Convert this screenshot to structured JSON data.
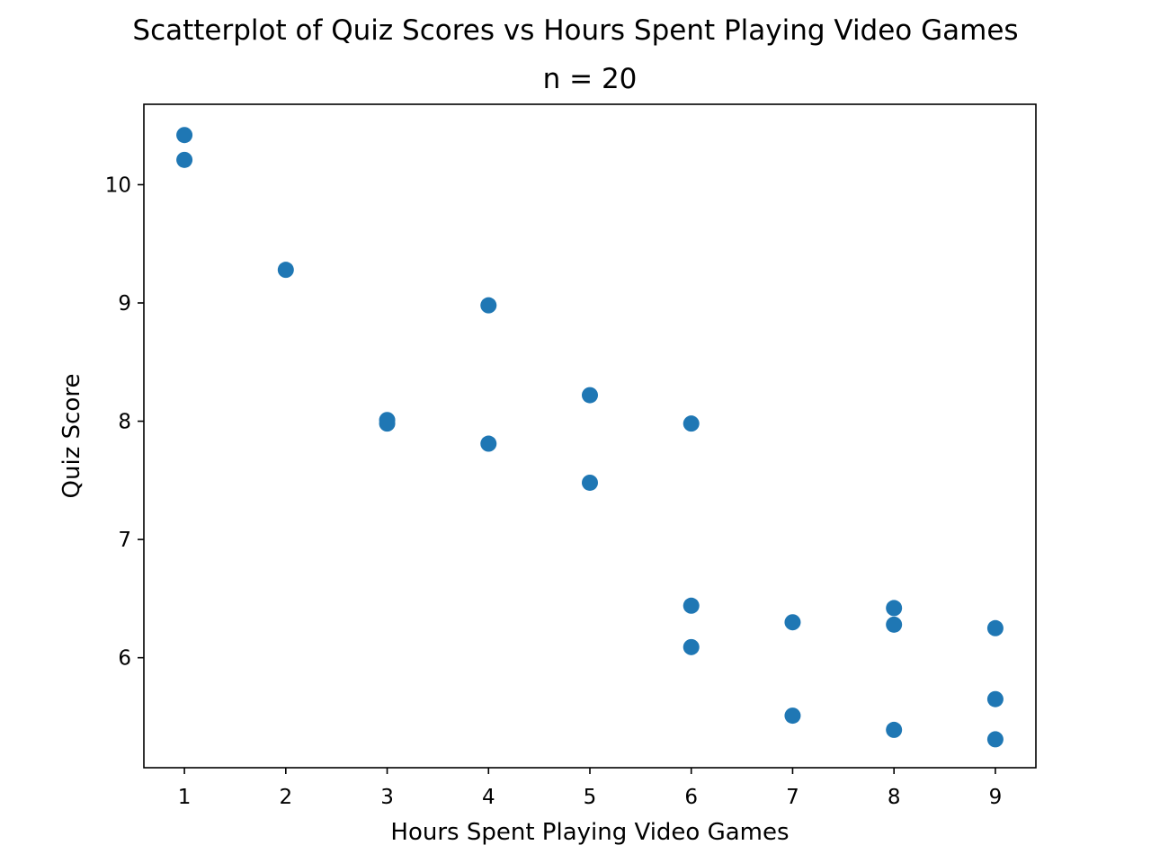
{
  "chart_data": {
    "type": "scatter",
    "title": "Scatterplot of Quiz Scores vs Hours Spent Playing Video Games",
    "subtitle": "n = 20",
    "xlabel": "Hours Spent Playing Video Games",
    "ylabel": "Quiz Score",
    "xlim": [
      0.6,
      9.4
    ],
    "ylim": [
      5.07,
      10.68
    ],
    "xticks": [
      1,
      2,
      3,
      4,
      5,
      6,
      7,
      8,
      9
    ],
    "yticks": [
      6,
      7,
      8,
      9,
      10
    ],
    "grid": false,
    "marker_color": "#1f77b4",
    "points": [
      {
        "x": 1,
        "y": 10.42
      },
      {
        "x": 1,
        "y": 10.21
      },
      {
        "x": 2,
        "y": 9.28
      },
      {
        "x": 3,
        "y": 8.01
      },
      {
        "x": 3,
        "y": 7.98
      },
      {
        "x": 4,
        "y": 8.98
      },
      {
        "x": 4,
        "y": 7.81
      },
      {
        "x": 5,
        "y": 8.22
      },
      {
        "x": 5,
        "y": 7.48
      },
      {
        "x": 6,
        "y": 7.98
      },
      {
        "x": 6,
        "y": 6.44
      },
      {
        "x": 6,
        "y": 6.09
      },
      {
        "x": 7,
        "y": 6.3
      },
      {
        "x": 7,
        "y": 5.51
      },
      {
        "x": 8,
        "y": 6.42
      },
      {
        "x": 8,
        "y": 6.28
      },
      {
        "x": 8,
        "y": 5.39
      },
      {
        "x": 9,
        "y": 6.25
      },
      {
        "x": 9,
        "y": 5.65
      },
      {
        "x": 9,
        "y": 5.31
      }
    ]
  }
}
